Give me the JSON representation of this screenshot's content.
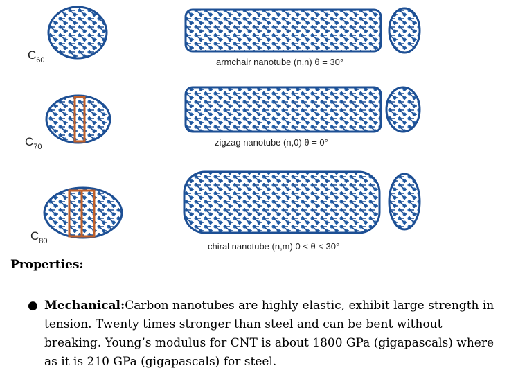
{
  "figure": {
    "molecules": [
      {
        "name": "C",
        "subscript": "60"
      },
      {
        "name": "C",
        "subscript": "70"
      },
      {
        "name": "C",
        "subscript": "80"
      }
    ],
    "tubes": [
      {
        "label": "armchair nanotube  (n,n)  θ = 30°"
      },
      {
        "label": "zigzag nanotube  (n,0)  θ = 0°"
      },
      {
        "label": "chiral nanotube  (n,m)   0 < θ < 30°"
      }
    ],
    "colors": {
      "atom": "#2f6fb8",
      "bond": "#1d4f94",
      "highlight": "#c0602a"
    }
  },
  "properties": {
    "heading": "Properties:",
    "bullet_icon": "bullet-dot",
    "lead": "Mechanical:",
    "text": "Carbon nanotubes are highly elastic, exhibit large strength in tension. Twenty times stronger than steel and can be bent without breaking. Young’s modulus for CNT is about 1800 GPa (gigapascals) where as it is 210 GPa (gigapascals) for steel."
  }
}
